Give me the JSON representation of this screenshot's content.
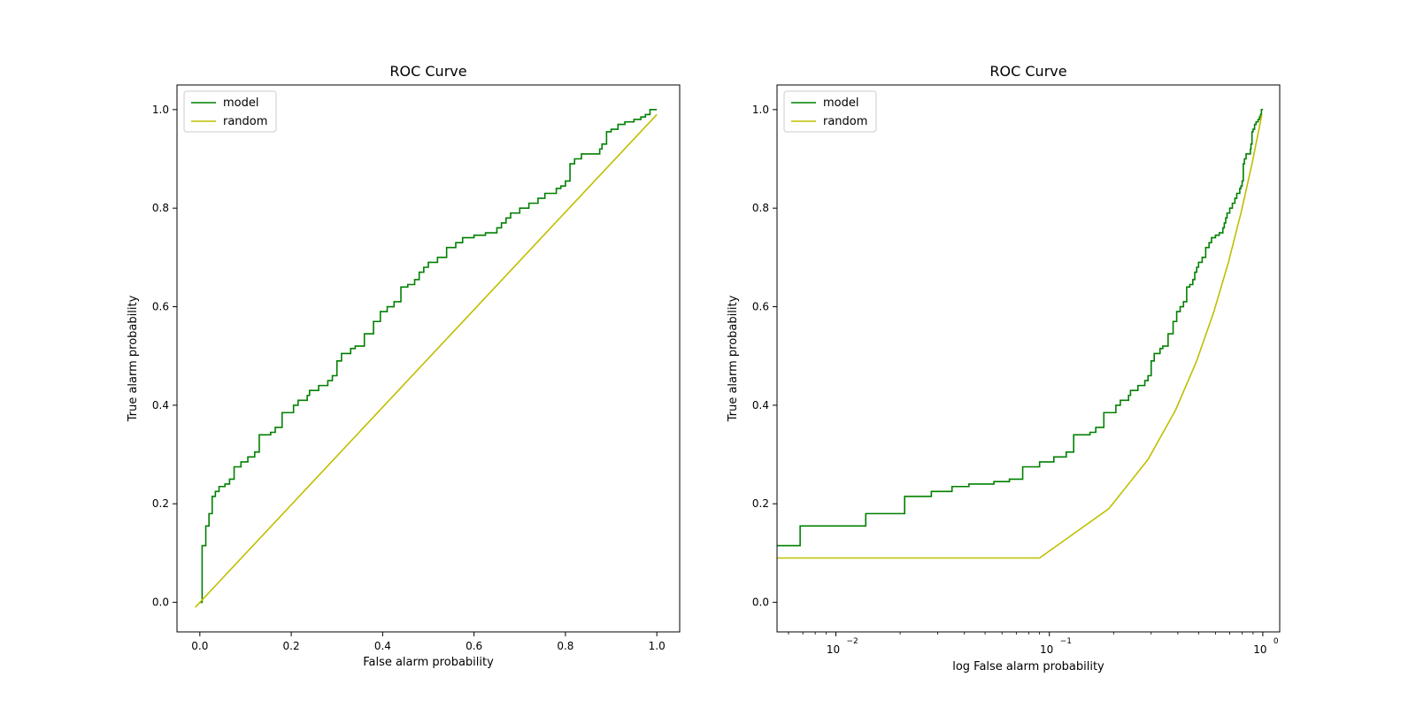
{
  "figure": {
    "background": "#ffffff"
  },
  "colors": {
    "model": "#008000",
    "random": "#bfbf00"
  },
  "chart_data": [
    {
      "type": "line",
      "title": "ROC Curve",
      "xlabel": "False alarm probability",
      "ylabel": "True alarm probability",
      "xscale": "linear",
      "xlim": [
        -0.05,
        1.05
      ],
      "ylim": [
        -0.06,
        1.05
      ],
      "xticks": [
        0.0,
        0.2,
        0.4,
        0.6,
        0.8,
        1.0
      ],
      "xtick_labels": [
        "0.0",
        "0.2",
        "0.4",
        "0.6",
        "0.8",
        "1.0"
      ],
      "yticks": [
        0.0,
        0.2,
        0.4,
        0.6,
        0.8,
        1.0
      ],
      "ytick_labels": [
        "0.0",
        "0.2",
        "0.4",
        "0.6",
        "0.8",
        "1.0"
      ],
      "grid": false,
      "legend": "upper-left",
      "series": [
        {
          "name": "model",
          "color": "#008000",
          "step": true,
          "x": [
            0.0,
            0.005,
            0.013,
            0.02,
            0.027,
            0.034,
            0.042,
            0.055,
            0.065,
            0.075,
            0.09,
            0.105,
            0.12,
            0.13,
            0.155,
            0.165,
            0.18,
            0.205,
            0.215,
            0.235,
            0.24,
            0.26,
            0.28,
            0.29,
            0.3,
            0.31,
            0.33,
            0.34,
            0.36,
            0.38,
            0.395,
            0.41,
            0.425,
            0.44,
            0.455,
            0.47,
            0.48,
            0.49,
            0.5,
            0.52,
            0.54,
            0.56,
            0.575,
            0.6,
            0.625,
            0.65,
            0.66,
            0.67,
            0.68,
            0.7,
            0.72,
            0.74,
            0.755,
            0.78,
            0.79,
            0.8,
            0.81,
            0.82,
            0.835,
            0.875,
            0.88,
            0.89,
            0.9,
            0.915,
            0.93,
            0.95,
            0.965,
            0.975,
            0.985,
            0.995,
            1.0
          ],
          "y": [
            0.0,
            0.115,
            0.155,
            0.18,
            0.215,
            0.225,
            0.235,
            0.24,
            0.25,
            0.275,
            0.285,
            0.295,
            0.305,
            0.34,
            0.345,
            0.355,
            0.385,
            0.4,
            0.41,
            0.42,
            0.43,
            0.44,
            0.45,
            0.46,
            0.49,
            0.505,
            0.515,
            0.52,
            0.545,
            0.57,
            0.59,
            0.6,
            0.61,
            0.64,
            0.645,
            0.655,
            0.67,
            0.68,
            0.69,
            0.7,
            0.72,
            0.73,
            0.74,
            0.745,
            0.75,
            0.76,
            0.77,
            0.78,
            0.79,
            0.8,
            0.81,
            0.82,
            0.83,
            0.84,
            0.845,
            0.855,
            0.89,
            0.9,
            0.91,
            0.92,
            0.93,
            0.955,
            0.96,
            0.97,
            0.975,
            0.98,
            0.985,
            0.99,
            1.0,
            1.0,
            1.0
          ]
        },
        {
          "name": "random",
          "color": "#bfbf00",
          "step": false,
          "x": [
            -0.01,
            1.0
          ],
          "y": [
            -0.01,
            0.99
          ]
        }
      ]
    },
    {
      "type": "line",
      "title": "ROC Curve",
      "xlabel": "log False alarm probability",
      "ylabel": "True alarm probability",
      "xscale": "log",
      "xlim": [
        0.0053,
        1.2
      ],
      "ylim": [
        -0.06,
        1.05
      ],
      "xticks": [
        0.01,
        0.1,
        1.0
      ],
      "xtick_labels": [
        "10",
        "10",
        "10"
      ],
      "xtick_exponents": [
        "−2",
        "−1",
        "0"
      ],
      "yticks": [
        0.0,
        0.2,
        0.4,
        0.6,
        0.8,
        1.0
      ],
      "ytick_labels": [
        "0.0",
        "0.2",
        "0.4",
        "0.6",
        "0.8",
        "1.0"
      ],
      "grid": false,
      "legend": "upper-left",
      "series": [
        {
          "name": "model",
          "color": "#008000",
          "step": true,
          "x": [
            0.0053,
            0.0068,
            0.0138,
            0.021,
            0.028,
            0.035,
            0.042,
            0.055,
            0.065,
            0.075,
            0.09,
            0.105,
            0.12,
            0.13,
            0.155,
            0.165,
            0.18,
            0.205,
            0.215,
            0.235,
            0.24,
            0.26,
            0.28,
            0.29,
            0.3,
            0.31,
            0.33,
            0.34,
            0.36,
            0.38,
            0.395,
            0.41,
            0.425,
            0.44,
            0.455,
            0.47,
            0.48,
            0.49,
            0.5,
            0.52,
            0.54,
            0.56,
            0.575,
            0.6,
            0.625,
            0.65,
            0.66,
            0.67,
            0.68,
            0.7,
            0.72,
            0.74,
            0.755,
            0.78,
            0.79,
            0.8,
            0.81,
            0.82,
            0.835,
            0.875,
            0.88,
            0.89,
            0.9,
            0.915,
            0.93,
            0.95,
            0.965,
            0.975,
            0.985,
            0.995,
            1.0
          ],
          "y": [
            0.115,
            0.155,
            0.18,
            0.215,
            0.225,
            0.235,
            0.24,
            0.245,
            0.25,
            0.275,
            0.285,
            0.295,
            0.305,
            0.34,
            0.345,
            0.355,
            0.385,
            0.4,
            0.41,
            0.42,
            0.43,
            0.44,
            0.45,
            0.46,
            0.49,
            0.505,
            0.515,
            0.52,
            0.545,
            0.57,
            0.59,
            0.6,
            0.61,
            0.64,
            0.645,
            0.655,
            0.67,
            0.68,
            0.69,
            0.7,
            0.72,
            0.73,
            0.74,
            0.745,
            0.75,
            0.76,
            0.77,
            0.78,
            0.79,
            0.8,
            0.81,
            0.82,
            0.83,
            0.84,
            0.845,
            0.855,
            0.89,
            0.9,
            0.91,
            0.92,
            0.93,
            0.955,
            0.96,
            0.97,
            0.975,
            0.98,
            0.985,
            0.99,
            1.0,
            1.0,
            1.0
          ]
        },
        {
          "name": "random",
          "color": "#bfbf00",
          "step": false,
          "x": [
            0.0053,
            0.09,
            0.19,
            0.29,
            0.39,
            0.49,
            0.59,
            0.69,
            0.79,
            0.89,
            0.99
          ],
          "y": [
            0.09,
            0.09,
            0.19,
            0.29,
            0.39,
            0.49,
            0.59,
            0.69,
            0.79,
            0.89,
            0.99
          ]
        }
      ]
    }
  ]
}
